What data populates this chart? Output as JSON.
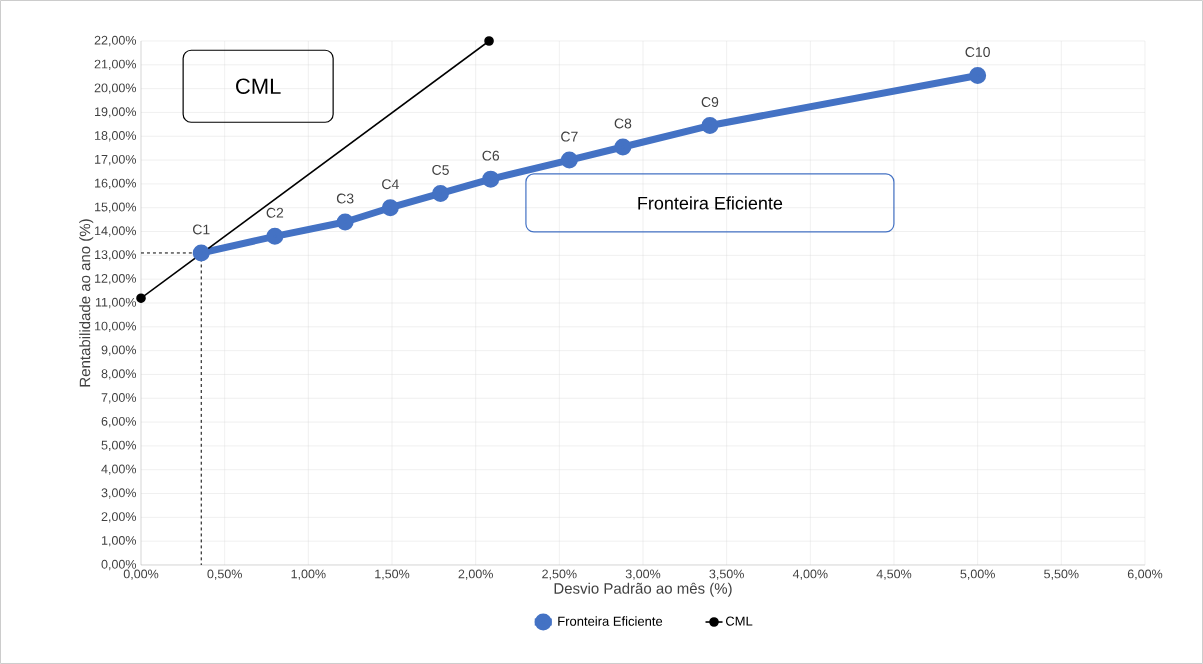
{
  "chart_data": {
    "type": "line",
    "xlabel": "Desvio Padrão ao mês (%)",
    "ylabel": "Rentabilidade ao ano (%)",
    "xlim": [
      0,
      6
    ],
    "ylim": [
      0,
      22
    ],
    "xticks": [
      {
        "value": 0,
        "label": "0,00%"
      },
      {
        "value": 0.5,
        "label": "0,50%"
      },
      {
        "value": 1,
        "label": "1,00%"
      },
      {
        "value": 1.5,
        "label": "1,50%"
      },
      {
        "value": 2,
        "label": "2,00%"
      },
      {
        "value": 2.5,
        "label": "2,50%"
      },
      {
        "value": 3,
        "label": "3,00%"
      },
      {
        "value": 3.5,
        "label": "3,50%"
      },
      {
        "value": 4,
        "label": "4,00%"
      },
      {
        "value": 4.5,
        "label": "4,50%"
      },
      {
        "value": 5,
        "label": "5,00%"
      },
      {
        "value": 5.5,
        "label": "5,50%"
      },
      {
        "value": 6,
        "label": "6,00%"
      }
    ],
    "yticks": [
      {
        "value": 0,
        "label": "0,00%"
      },
      {
        "value": 1,
        "label": "1,00%"
      },
      {
        "value": 2,
        "label": "2,00%"
      },
      {
        "value": 3,
        "label": "3,00%"
      },
      {
        "value": 4,
        "label": "4,00%"
      },
      {
        "value": 5,
        "label": "5,00%"
      },
      {
        "value": 6,
        "label": "6,00%"
      },
      {
        "value": 7,
        "label": "7,00%"
      },
      {
        "value": 8,
        "label": "8,00%"
      },
      {
        "value": 9,
        "label": "9,00%"
      },
      {
        "value": 10,
        "label": "10,00%"
      },
      {
        "value": 11,
        "label": "11,00%"
      },
      {
        "value": 12,
        "label": "12,00%"
      },
      {
        "value": 13,
        "label": "13,00%"
      },
      {
        "value": 14,
        "label": "14,00%"
      },
      {
        "value": 15,
        "label": "15,00%"
      },
      {
        "value": 16,
        "label": "16,00%"
      },
      {
        "value": 17,
        "label": "17,00%"
      },
      {
        "value": 18,
        "label": "18,00%"
      },
      {
        "value": 19,
        "label": "19,00%"
      },
      {
        "value": 20,
        "label": "20,00%"
      },
      {
        "value": 21,
        "label": "21,00%"
      },
      {
        "value": 22,
        "label": "22,00%"
      }
    ],
    "grid": true,
    "legend": "bottom",
    "marker": "circle",
    "series": [
      {
        "name": "Fronteira Eficiente",
        "color": "#4472c4",
        "x": [
          0.36,
          0.8,
          1.22,
          1.49,
          1.79,
          2.09,
          2.56,
          2.88,
          3.4,
          5.0
        ],
        "values": [
          13.1,
          13.8,
          14.4,
          15.0,
          15.6,
          16.2,
          17.0,
          17.55,
          18.45,
          20.55
        ],
        "value_labels": [
          "C1",
          "C2",
          "C3",
          "C4",
          "C5",
          "C6",
          "C7",
          "C8",
          "C9",
          "C10"
        ]
      },
      {
        "name": "CML",
        "color": "#000000",
        "x": [
          0,
          2.08
        ],
        "values": [
          11.2,
          22.0
        ]
      },
      {
        "color": "#000000",
        "line_style": "dashed",
        "marker": "none",
        "x": [
          0,
          0.36,
          0.36
        ],
        "values": [
          13.1,
          13.1,
          0
        ]
      }
    ],
    "annotations": [
      "CML",
      "Fronteira Eficiente"
    ]
  }
}
